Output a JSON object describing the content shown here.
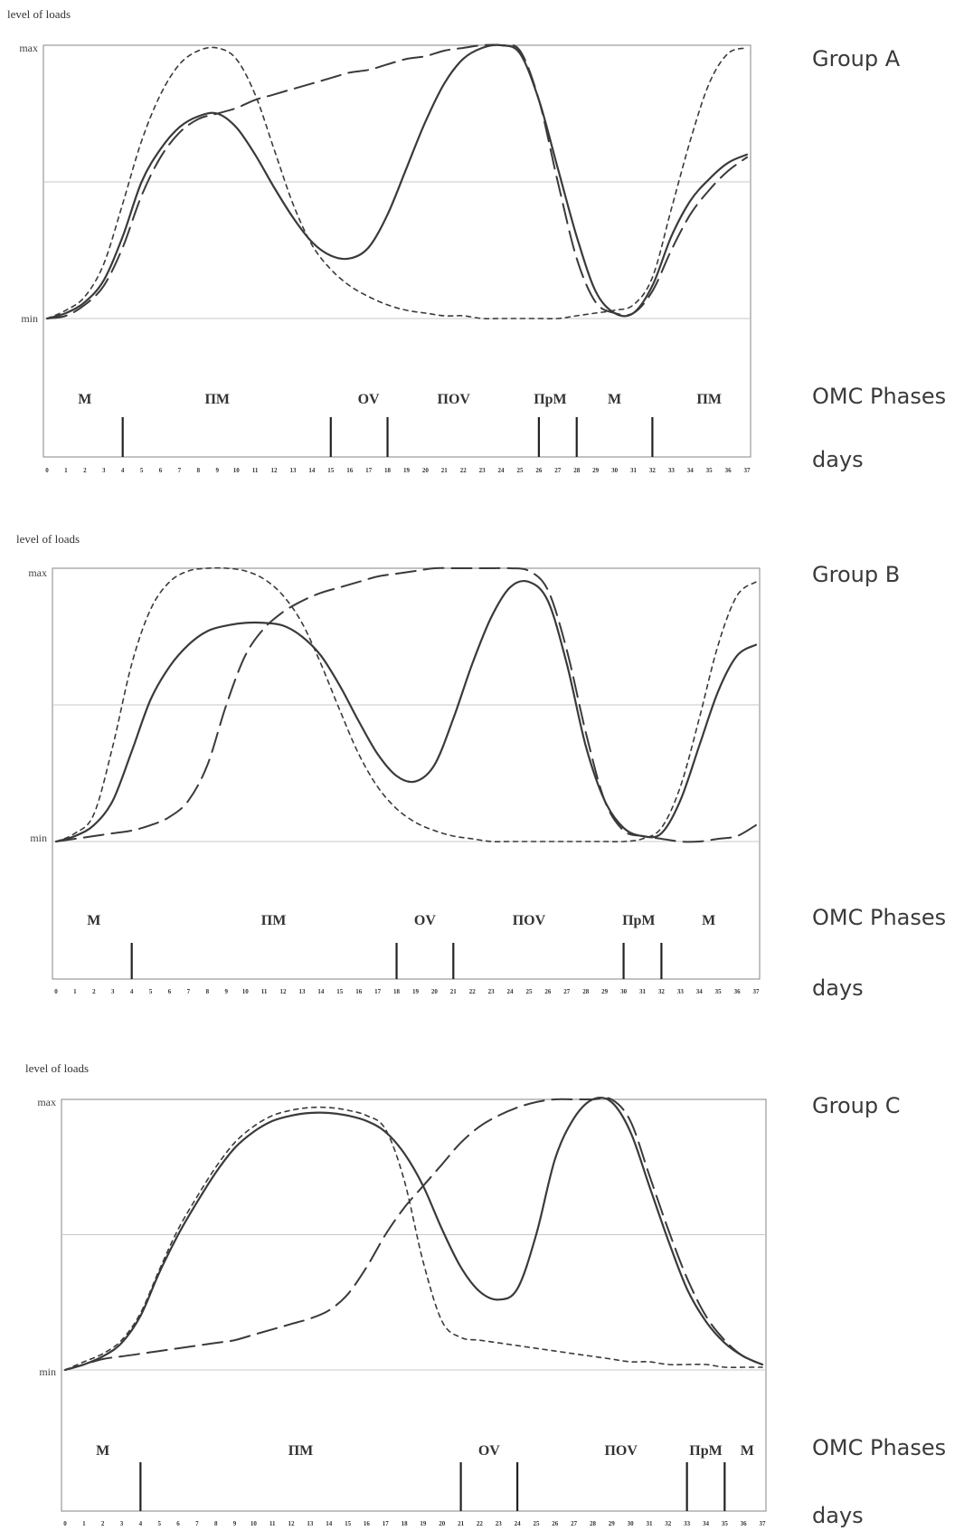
{
  "chart_data": [
    {
      "type": "line",
      "title": "Group A",
      "ylabel": "level of loads",
      "y_ticks": [
        "max",
        "min"
      ],
      "ylim": [
        0,
        1
      ],
      "xlim": [
        0,
        37
      ],
      "x_ticks": [
        "0",
        "1",
        "2",
        "3",
        "4",
        "5",
        "6",
        "7",
        "8",
        "9",
        "10",
        "11",
        "12",
        "13",
        "14",
        "15",
        "16",
        "17",
        "18",
        "19",
        "20",
        "21",
        "22",
        "23",
        "24",
        "25",
        "26",
        "27",
        "28",
        "29",
        "30",
        "31",
        "32",
        "33",
        "34",
        "35",
        "36",
        "37"
      ],
      "row_labels": {
        "phases": "OMC Phases",
        "days": "days"
      },
      "phases": [
        "M",
        "ПМ",
        "OV",
        "ПOV",
        "ПрМ",
        "M",
        "ПМ"
      ],
      "phase_label_days": [
        2,
        9,
        17,
        21.5,
        26.6,
        30,
        35
      ],
      "phase_boundaries_days": [
        4,
        15,
        18,
        26,
        28,
        32
      ],
      "series": [
        {
          "style": "solid",
          "x": [
            0,
            1,
            2,
            3,
            4,
            5,
            6,
            7,
            8,
            9,
            10,
            11,
            12,
            13,
            14,
            15,
            16,
            17,
            18,
            19,
            20,
            21,
            22,
            23,
            24,
            25,
            26,
            27,
            28,
            29,
            30,
            31,
            32,
            33,
            34,
            35,
            36,
            37
          ],
          "y": [
            0,
            0.02,
            0.06,
            0.14,
            0.3,
            0.5,
            0.62,
            0.7,
            0.74,
            0.75,
            0.7,
            0.6,
            0.48,
            0.37,
            0.28,
            0.23,
            0.22,
            0.26,
            0.38,
            0.55,
            0.72,
            0.86,
            0.95,
            0.99,
            1.0,
            0.97,
            0.8,
            0.55,
            0.3,
            0.1,
            0.02,
            0.02,
            0.12,
            0.3,
            0.43,
            0.51,
            0.57,
            0.6
          ]
        },
        {
          "style": "long-dash",
          "x": [
            0,
            1,
            2,
            3,
            4,
            5,
            6,
            7,
            8,
            9,
            10,
            11,
            12,
            13,
            14,
            15,
            16,
            17,
            18,
            19,
            20,
            21,
            22,
            23,
            24,
            25,
            26,
            27,
            28,
            29,
            30,
            31,
            32,
            33,
            34,
            35,
            36,
            37
          ],
          "y": [
            0,
            0.01,
            0.05,
            0.12,
            0.26,
            0.45,
            0.59,
            0.68,
            0.73,
            0.75,
            0.77,
            0.8,
            0.82,
            0.84,
            0.86,
            0.88,
            0.9,
            0.91,
            0.93,
            0.95,
            0.96,
            0.98,
            0.99,
            1.0,
            1.0,
            0.98,
            0.8,
            0.5,
            0.22,
            0.06,
            0.02,
            0.02,
            0.1,
            0.25,
            0.38,
            0.47,
            0.54,
            0.59
          ]
        },
        {
          "style": "short-dash",
          "x": [
            0,
            1,
            2,
            3,
            4,
            5,
            6,
            7,
            8,
            9,
            10,
            11,
            12,
            13,
            14,
            15,
            16,
            17,
            18,
            19,
            20,
            21,
            22,
            23,
            24,
            25,
            26,
            27,
            28,
            29,
            30,
            31,
            32,
            33,
            34,
            35,
            36,
            37
          ],
          "y": [
            0,
            0.03,
            0.08,
            0.2,
            0.42,
            0.65,
            0.82,
            0.93,
            0.98,
            0.99,
            0.95,
            0.82,
            0.62,
            0.42,
            0.27,
            0.18,
            0.12,
            0.08,
            0.05,
            0.03,
            0.02,
            0.01,
            0.01,
            0.0,
            0.0,
            0.0,
            0.0,
            0.0,
            0.01,
            0.02,
            0.03,
            0.05,
            0.15,
            0.4,
            0.65,
            0.86,
            0.97,
            0.99
          ]
        }
      ]
    },
    {
      "type": "line",
      "title": "Group B",
      "ylabel": "level of loads",
      "y_ticks": [
        "max",
        "min"
      ],
      "ylim": [
        0,
        1
      ],
      "xlim": [
        0,
        37
      ],
      "x_ticks": [
        "0",
        "1",
        "2",
        "3",
        "4",
        "5",
        "6",
        "7",
        "8",
        "9",
        "10",
        "11",
        "12",
        "13",
        "14",
        "15",
        "16",
        "17",
        "18",
        "19",
        "20",
        "21",
        "22",
        "23",
        "24",
        "25",
        "26",
        "27",
        "28",
        "29",
        "30",
        "31",
        "32",
        "33",
        "34",
        "35",
        "36",
        "37"
      ],
      "row_labels": {
        "phases": "OMC Phases",
        "days": "days"
      },
      "phases": [
        "M",
        "ПМ",
        "OV",
        "ПOV",
        "ПрМ",
        "M"
      ],
      "phase_label_days": [
        2,
        11.5,
        19.5,
        25,
        30.8,
        34.5
      ],
      "phase_boundaries_days": [
        4,
        18,
        21,
        30,
        32
      ],
      "series": [
        {
          "style": "solid",
          "x": [
            0,
            1,
            2,
            3,
            4,
            5,
            6,
            7,
            8,
            9,
            10,
            11,
            12,
            13,
            14,
            15,
            16,
            17,
            18,
            19,
            20,
            21,
            22,
            23,
            24,
            25,
            26,
            27,
            28,
            29,
            30,
            31,
            32,
            33,
            34,
            35,
            36,
            37
          ],
          "y": [
            0,
            0.02,
            0.06,
            0.15,
            0.33,
            0.52,
            0.64,
            0.72,
            0.77,
            0.79,
            0.8,
            0.8,
            0.79,
            0.75,
            0.68,
            0.57,
            0.44,
            0.32,
            0.24,
            0.22,
            0.28,
            0.45,
            0.65,
            0.82,
            0.93,
            0.95,
            0.88,
            0.65,
            0.35,
            0.15,
            0.05,
            0.02,
            0.03,
            0.15,
            0.35,
            0.55,
            0.68,
            0.72
          ]
        },
        {
          "style": "long-dash",
          "x": [
            0,
            1,
            2,
            3,
            4,
            5,
            6,
            7,
            8,
            9,
            10,
            11,
            12,
            13,
            14,
            15,
            16,
            17,
            18,
            19,
            20,
            21,
            22,
            23,
            24,
            25,
            26,
            27,
            28,
            29,
            30,
            31,
            32,
            33,
            34,
            35,
            36,
            37
          ],
          "y": [
            0,
            0.01,
            0.02,
            0.03,
            0.04,
            0.06,
            0.09,
            0.15,
            0.28,
            0.5,
            0.68,
            0.78,
            0.84,
            0.88,
            0.91,
            0.93,
            0.95,
            0.97,
            0.98,
            0.99,
            1.0,
            1.0,
            1.0,
            1.0,
            1.0,
            0.99,
            0.92,
            0.7,
            0.4,
            0.15,
            0.04,
            0.02,
            0.01,
            0.0,
            0.0,
            0.01,
            0.02,
            0.06
          ]
        },
        {
          "style": "short-dash",
          "x": [
            0,
            1,
            2,
            3,
            4,
            5,
            6,
            7,
            8,
            9,
            10,
            11,
            12,
            13,
            14,
            15,
            16,
            17,
            18,
            19,
            20,
            21,
            22,
            23,
            24,
            25,
            26,
            27,
            28,
            29,
            30,
            31,
            32,
            33,
            34,
            35,
            36,
            37
          ],
          "y": [
            0,
            0.03,
            0.1,
            0.35,
            0.65,
            0.85,
            0.95,
            0.99,
            1.0,
            1.0,
            0.99,
            0.96,
            0.9,
            0.8,
            0.65,
            0.48,
            0.32,
            0.2,
            0.12,
            0.07,
            0.04,
            0.02,
            0.01,
            0.0,
            0.0,
            0.0,
            0.0,
            0.0,
            0.0,
            0.0,
            0.0,
            0.01,
            0.05,
            0.2,
            0.45,
            0.72,
            0.9,
            0.95
          ]
        }
      ]
    },
    {
      "type": "line",
      "title": "Group C",
      "ylabel": "level of loads",
      "y_ticks": [
        "max",
        "min"
      ],
      "ylim": [
        0,
        1
      ],
      "xlim": [
        0,
        37
      ],
      "x_ticks": [
        "0",
        "1",
        "2",
        "3",
        "4",
        "5",
        "6",
        "7",
        "8",
        "9",
        "10",
        "11",
        "12",
        "13",
        "14",
        "15",
        "16",
        "17",
        "18",
        "19",
        "20",
        "21",
        "22",
        "23",
        "24",
        "25",
        "26",
        "27",
        "28",
        "29",
        "30",
        "31",
        "32",
        "33",
        "34",
        "35",
        "36",
        "37"
      ],
      "row_labels": {
        "phases": "OMC Phases",
        "days": "days"
      },
      "phases": [
        "M",
        "ПМ",
        "OV",
        "ПOV",
        "ПрМ",
        "M"
      ],
      "phase_label_days": [
        2,
        12.5,
        22.5,
        29.5,
        34,
        36.2
      ],
      "phase_boundaries_days": [
        4,
        21,
        24,
        33,
        35
      ],
      "series": [
        {
          "style": "solid",
          "x": [
            0,
            1,
            2,
            3,
            4,
            5,
            6,
            7,
            8,
            9,
            10,
            11,
            12,
            13,
            14,
            15,
            16,
            17,
            18,
            19,
            20,
            21,
            22,
            23,
            24,
            25,
            26,
            27,
            28,
            29,
            30,
            31,
            32,
            33,
            34,
            35,
            36,
            37
          ],
          "y": [
            0,
            0.02,
            0.05,
            0.1,
            0.2,
            0.36,
            0.5,
            0.62,
            0.73,
            0.82,
            0.88,
            0.92,
            0.94,
            0.95,
            0.95,
            0.94,
            0.92,
            0.88,
            0.8,
            0.68,
            0.52,
            0.38,
            0.29,
            0.26,
            0.3,
            0.5,
            0.78,
            0.93,
            1.0,
            0.99,
            0.88,
            0.68,
            0.48,
            0.3,
            0.18,
            0.1,
            0.05,
            0.02
          ]
        },
        {
          "style": "long-dash",
          "x": [
            0,
            1,
            2,
            3,
            4,
            5,
            6,
            7,
            8,
            9,
            10,
            11,
            12,
            13,
            14,
            15,
            16,
            17,
            18,
            19,
            20,
            21,
            22,
            23,
            24,
            25,
            26,
            27,
            28,
            29,
            30,
            31,
            32,
            33,
            34,
            35,
            36,
            37
          ],
          "y": [
            0,
            0.02,
            0.04,
            0.05,
            0.06,
            0.07,
            0.08,
            0.09,
            0.1,
            0.11,
            0.13,
            0.15,
            0.17,
            0.19,
            0.22,
            0.28,
            0.38,
            0.5,
            0.6,
            0.68,
            0.76,
            0.84,
            0.9,
            0.94,
            0.97,
            0.99,
            1.0,
            1.0,
            1.0,
            1.0,
            0.92,
            0.72,
            0.52,
            0.34,
            0.2,
            0.11,
            0.05,
            0.02
          ]
        },
        {
          "style": "short-dash",
          "x": [
            0,
            1,
            2,
            3,
            4,
            5,
            6,
            7,
            8,
            9,
            10,
            11,
            12,
            13,
            14,
            15,
            16,
            17,
            18,
            19,
            20,
            21,
            22,
            23,
            24,
            25,
            26,
            27,
            28,
            29,
            30,
            31,
            32,
            33,
            34,
            35,
            36,
            37
          ],
          "y": [
            0,
            0.03,
            0.06,
            0.11,
            0.21,
            0.37,
            0.52,
            0.64,
            0.75,
            0.84,
            0.9,
            0.94,
            0.96,
            0.97,
            0.97,
            0.96,
            0.94,
            0.89,
            0.7,
            0.4,
            0.18,
            0.12,
            0.11,
            0.1,
            0.09,
            0.08,
            0.07,
            0.06,
            0.05,
            0.04,
            0.03,
            0.03,
            0.02,
            0.02,
            0.02,
            0.01,
            0.01,
            0.01
          ]
        }
      ]
    }
  ]
}
